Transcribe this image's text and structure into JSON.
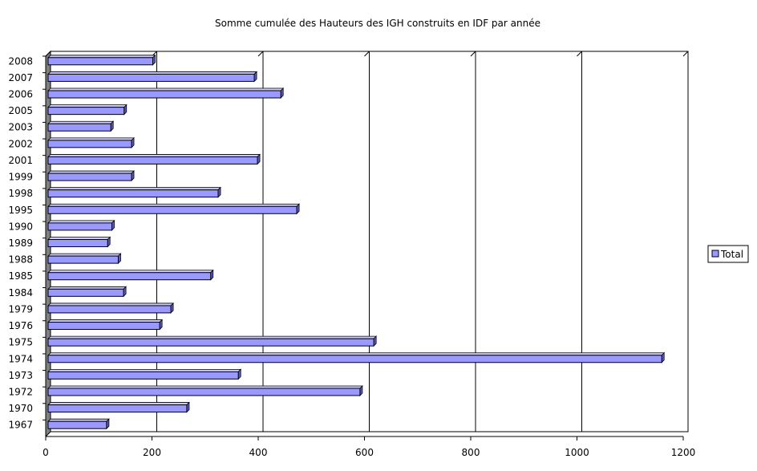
{
  "chart_data": {
    "type": "bar",
    "orientation": "horizontal",
    "title": "Somme cumulée des Hauteurs des IGH construits en IDF par année",
    "xlabel": "",
    "ylabel": "",
    "xlim": [
      0,
      1200
    ],
    "x_ticks": [
      "0",
      "200",
      "400",
      "600",
      "800",
      "1000",
      "1200"
    ],
    "grid": "vertical",
    "three_d": true,
    "legend_position": "right",
    "colors": {
      "bar": "#9999ff",
      "bar_side": "#5c5cc0",
      "wall": "#808080",
      "plot_bg": "#ffffff"
    },
    "categories": [
      "2008",
      "2007",
      "2006",
      "2005",
      "2003",
      "2002",
      "2001",
      "1999",
      "1998",
      "1995",
      "1990",
      "1989",
      "1988",
      "1985",
      "1984",
      "1979",
      "1976",
      "1975",
      "1974",
      "1973",
      "1972",
      "1970",
      "1967"
    ],
    "series": [
      {
        "name": "Total",
        "values": [
          197,
          388,
          438,
          143,
          118,
          157,
          394,
          157,
          320,
          468,
          120,
          112,
          132,
          306,
          142,
          231,
          210,
          613,
          1155,
          358,
          587,
          261,
          110
        ]
      }
    ]
  }
}
